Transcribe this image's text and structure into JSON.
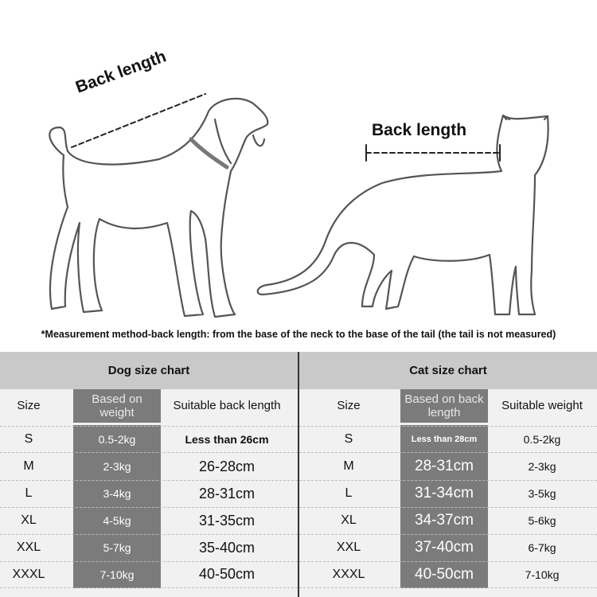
{
  "illustration": {
    "dog_label": "Back length",
    "cat_label": "Back length",
    "note": "*Measurement method-back length: from the base of the neck to the base of the tail (the tail is not measured)"
  },
  "dog_chart": {
    "title": "Dog size chart",
    "headers": [
      "Size",
      "Based on weight",
      "Suitable back length"
    ],
    "rows": [
      {
        "size": "S",
        "weight": "0.5-2kg",
        "length": "Less than 26cm"
      },
      {
        "size": "M",
        "weight": "2-3kg",
        "length": "26-28cm"
      },
      {
        "size": "L",
        "weight": "3-4kg",
        "length": "28-31cm"
      },
      {
        "size": "XL",
        "weight": "4-5kg",
        "length": "31-35cm"
      },
      {
        "size": "XXL",
        "weight": "5-7kg",
        "length": "35-40cm"
      },
      {
        "size": "XXXL",
        "weight": "7-10kg",
        "length": "40-50cm"
      }
    ]
  },
  "cat_chart": {
    "title": "Cat size chart",
    "headers": [
      "Size",
      "Based on back length",
      "Suitable weight"
    ],
    "rows": [
      {
        "size": "S",
        "length": "Less than 28cm",
        "weight": "0.5-2kg"
      },
      {
        "size": "M",
        "length": "28-31cm",
        "weight": "2-3kg"
      },
      {
        "size": "L",
        "length": "31-34cm",
        "weight": "3-5kg"
      },
      {
        "size": "XL",
        "length": "34-37cm",
        "weight": "5-6kg"
      },
      {
        "size": "XXL",
        "length": "37-40cm",
        "weight": "6-7kg"
      },
      {
        "size": "XXXL",
        "length": "40-50cm",
        "weight": "7-10kg"
      }
    ]
  },
  "colors": {
    "band": "#c9c9c9",
    "highlight_column": "#7b7b7b",
    "panel": "#f1f1f1"
  }
}
